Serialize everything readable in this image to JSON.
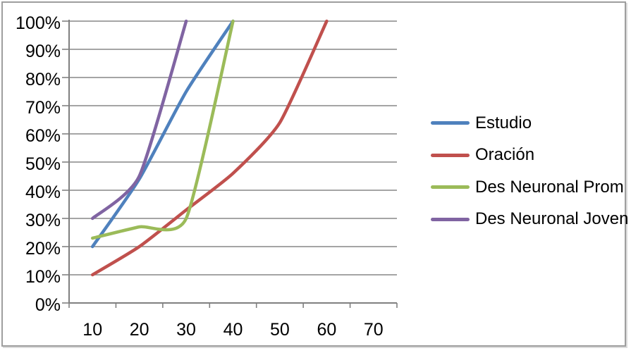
{
  "chart_data": {
    "type": "line",
    "title": "",
    "xlabel": "",
    "ylabel": "",
    "x_tick_labels": [
      "10",
      "20",
      "30",
      "40",
      "50",
      "60",
      "70"
    ],
    "y_tick_labels": [
      "0%",
      "10%",
      "20%",
      "30%",
      "40%",
      "50%",
      "60%",
      "70%",
      "80%",
      "90%",
      "100%"
    ],
    "ylim": [
      0,
      100
    ],
    "xlim": [
      10,
      70
    ],
    "grid": true,
    "legend_position": "right",
    "series": [
      {
        "name": "Estudio",
        "color": "#4F81BD",
        "x": [
          10,
          20,
          30,
          40
        ],
        "values": [
          20,
          44,
          75,
          100
        ]
      },
      {
        "name": "Oración",
        "color": "#C0504D",
        "x": [
          10,
          20,
          30,
          40,
          50,
          60
        ],
        "values": [
          10,
          20,
          33,
          46,
          64,
          100
        ]
      },
      {
        "name": "Des Neuronal Prom",
        "color": "#9BBB59",
        "x": [
          10,
          20,
          30,
          40
        ],
        "values": [
          23,
          27,
          30,
          100
        ]
      },
      {
        "name": "Des Neuronal Joven",
        "color": "#8064A2",
        "x": [
          10,
          20,
          30
        ],
        "values": [
          30,
          45,
          100
        ]
      }
    ]
  },
  "colors": {
    "gridline": "#878787",
    "axis": "#808080",
    "tick": "#808080",
    "text": "#000000",
    "background": "#FFFFFF",
    "frame_border": "#9E9E9E"
  }
}
